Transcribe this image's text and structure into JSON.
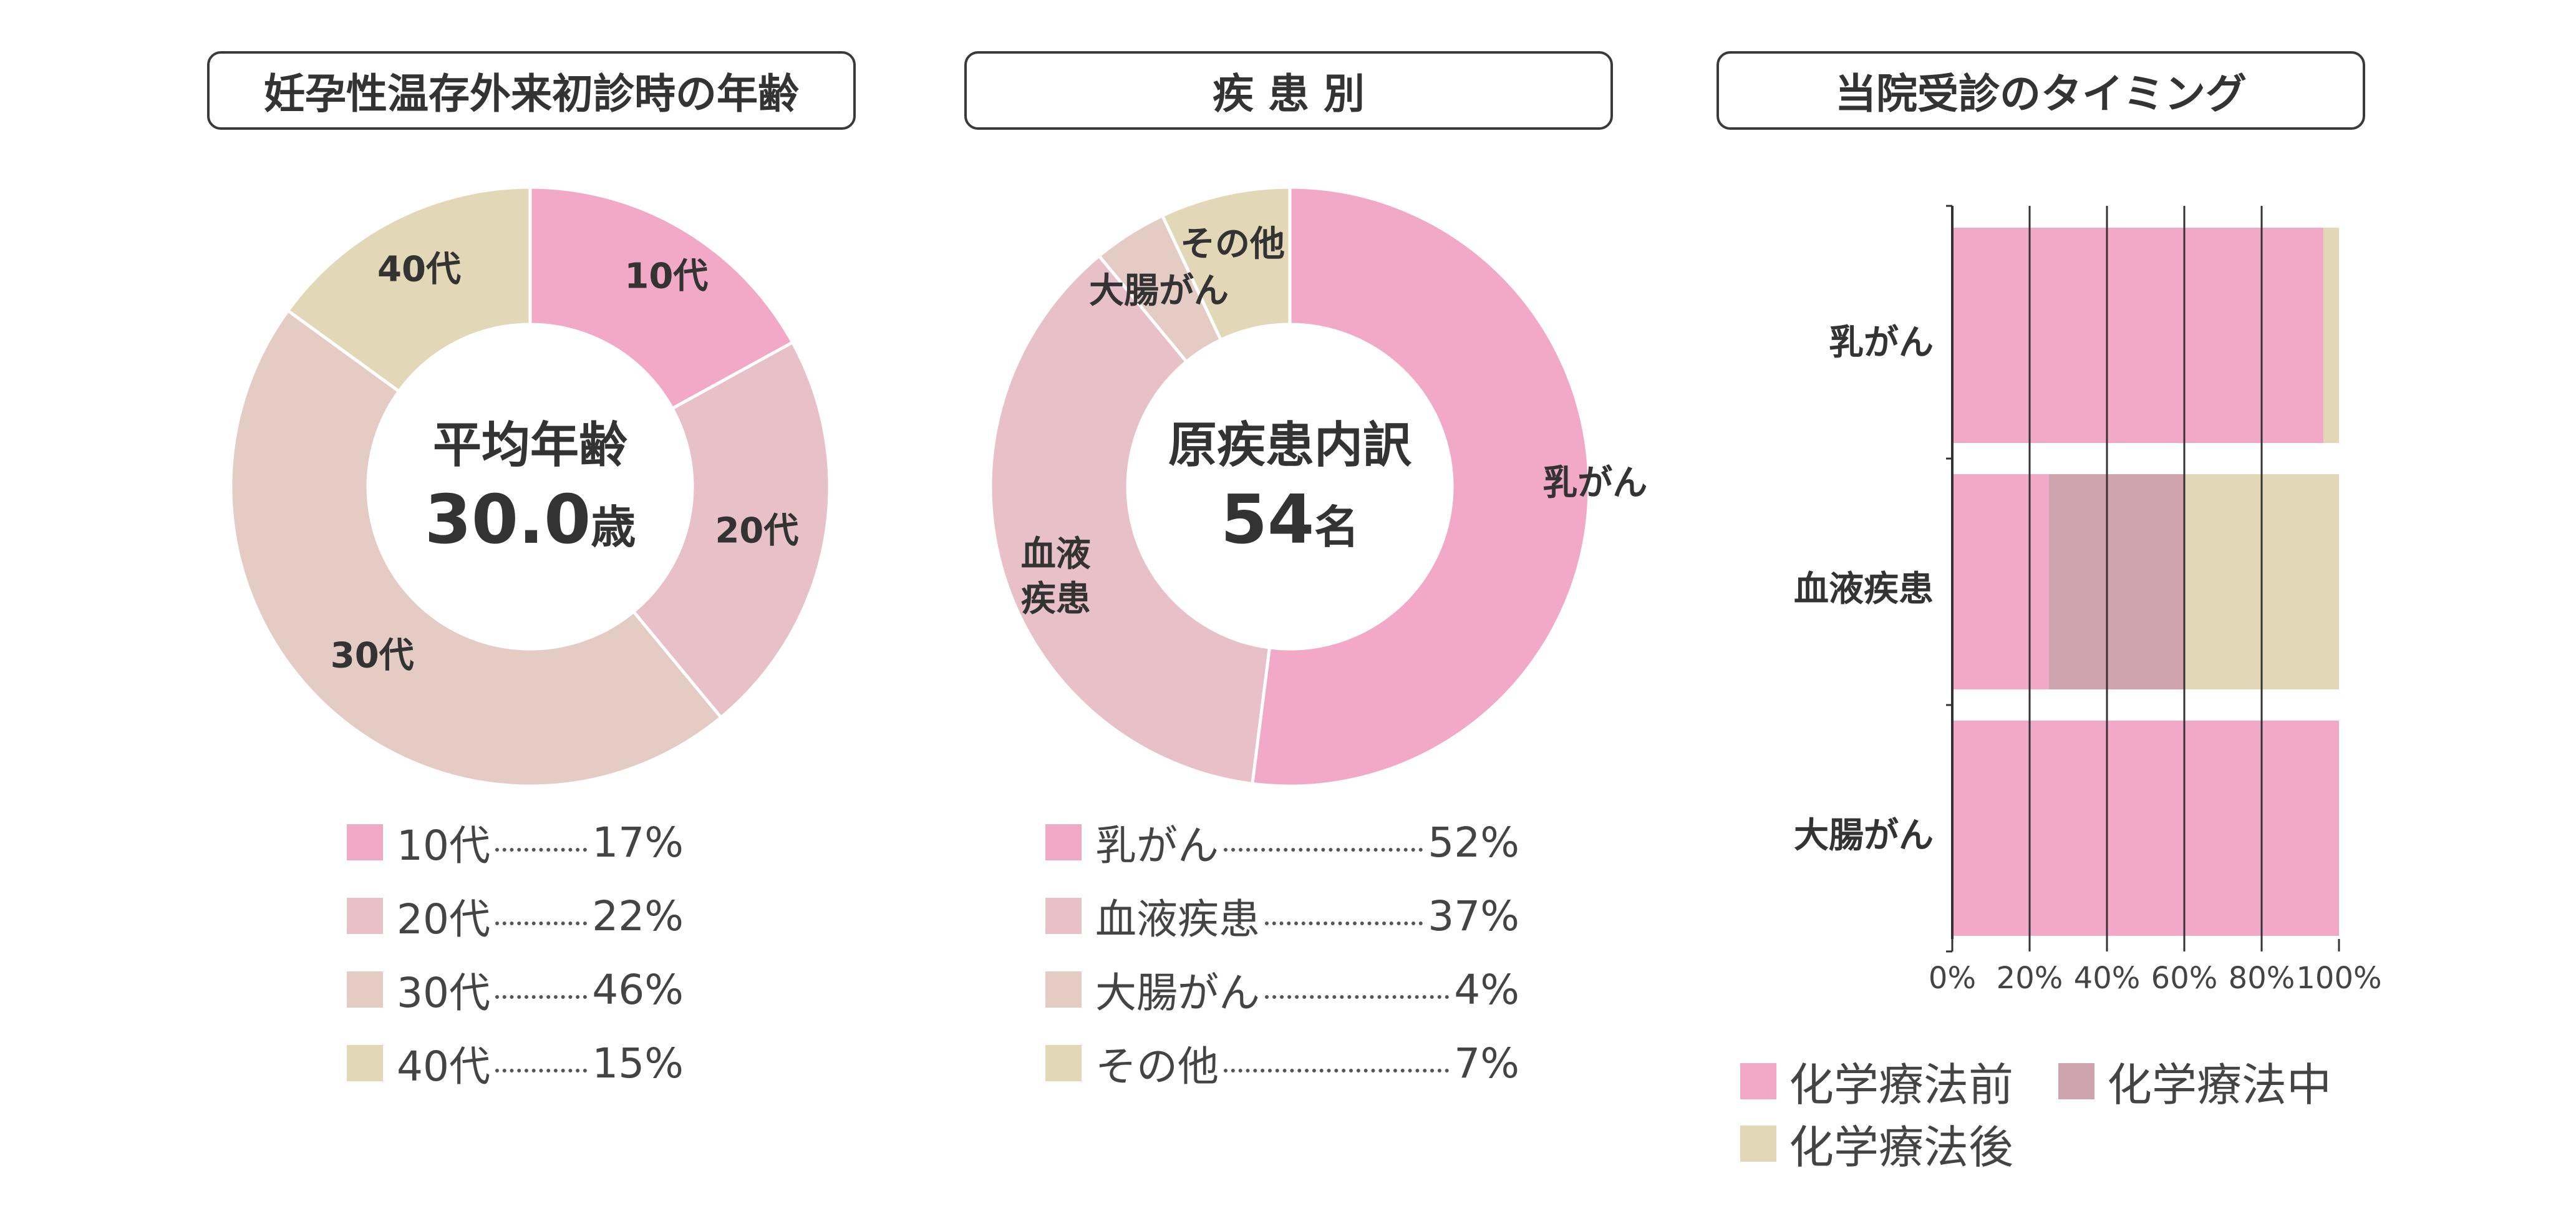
{
  "panels": {
    "age": {
      "title": "妊孕性温存外来初診時の年齢",
      "center_line1": "平均年齢",
      "center_line2": "30.0",
      "center_unit": "歳"
    },
    "disease": {
      "title": "疾 患 別",
      "center_line1": "原疾患内訳",
      "center_line2": "54",
      "center_unit": "名"
    },
    "timing": {
      "title": "当院受診のタイミング"
    }
  },
  "colors": {
    "pink": "#f2a9c8",
    "rose": "#e8c0c8",
    "beige_pink": "#e4ccc4",
    "beige": "#e2d8b8",
    "mauve": "#d0a4ae"
  },
  "chart_data": [
    {
      "type": "pie",
      "title": "妊孕性温存外来初診時の年齢",
      "slices": [
        {
          "label": "10代",
          "value": 17,
          "value_label": "17%",
          "color": "#f2a9c8"
        },
        {
          "label": "20代",
          "value": 22,
          "value_label": "22%",
          "color": "#e8c0c8"
        },
        {
          "label": "30代",
          "value": 46,
          "value_label": "46%",
          "color": "#e4ccc4"
        },
        {
          "label": "40代",
          "value": 15,
          "value_label": "15%",
          "color": "#e2d8b8"
        }
      ]
    },
    {
      "type": "pie",
      "title": "疾 患 別",
      "slices": [
        {
          "label": "乳がん",
          "value": 52,
          "value_label": "52%",
          "color": "#f2a9c8"
        },
        {
          "label": "血液疾患",
          "value": 37,
          "value_label": "37%",
          "color": "#e8c0c8"
        },
        {
          "label": "大腸がん",
          "value": 4,
          "value_label": "4%",
          "color": "#e4ccc4"
        },
        {
          "label": "その他",
          "value": 7,
          "value_label": "7%",
          "color": "#e2d8b8"
        }
      ]
    },
    {
      "type": "bar",
      "orientation": "horizontal",
      "stacked": true,
      "title": "当院受診のタイミング",
      "categories": [
        "乳がん",
        "血液疾患",
        "大腸がん"
      ],
      "series": [
        {
          "name": "化学療法前",
          "values": [
            96,
            25,
            100
          ],
          "color": "#f2a9c8"
        },
        {
          "name": "化学療法中",
          "values": [
            0,
            35,
            0
          ],
          "color": "#d0a4ae"
        },
        {
          "name": "化学療法後",
          "values": [
            4,
            40,
            0
          ],
          "color": "#e2d8b8"
        }
      ],
      "xticks": [
        "0%",
        "20%",
        "40%",
        "60%",
        "80%",
        "100%"
      ],
      "xlim": [
        0,
        100
      ],
      "grid": true,
      "legend": "bottom"
    }
  ]
}
